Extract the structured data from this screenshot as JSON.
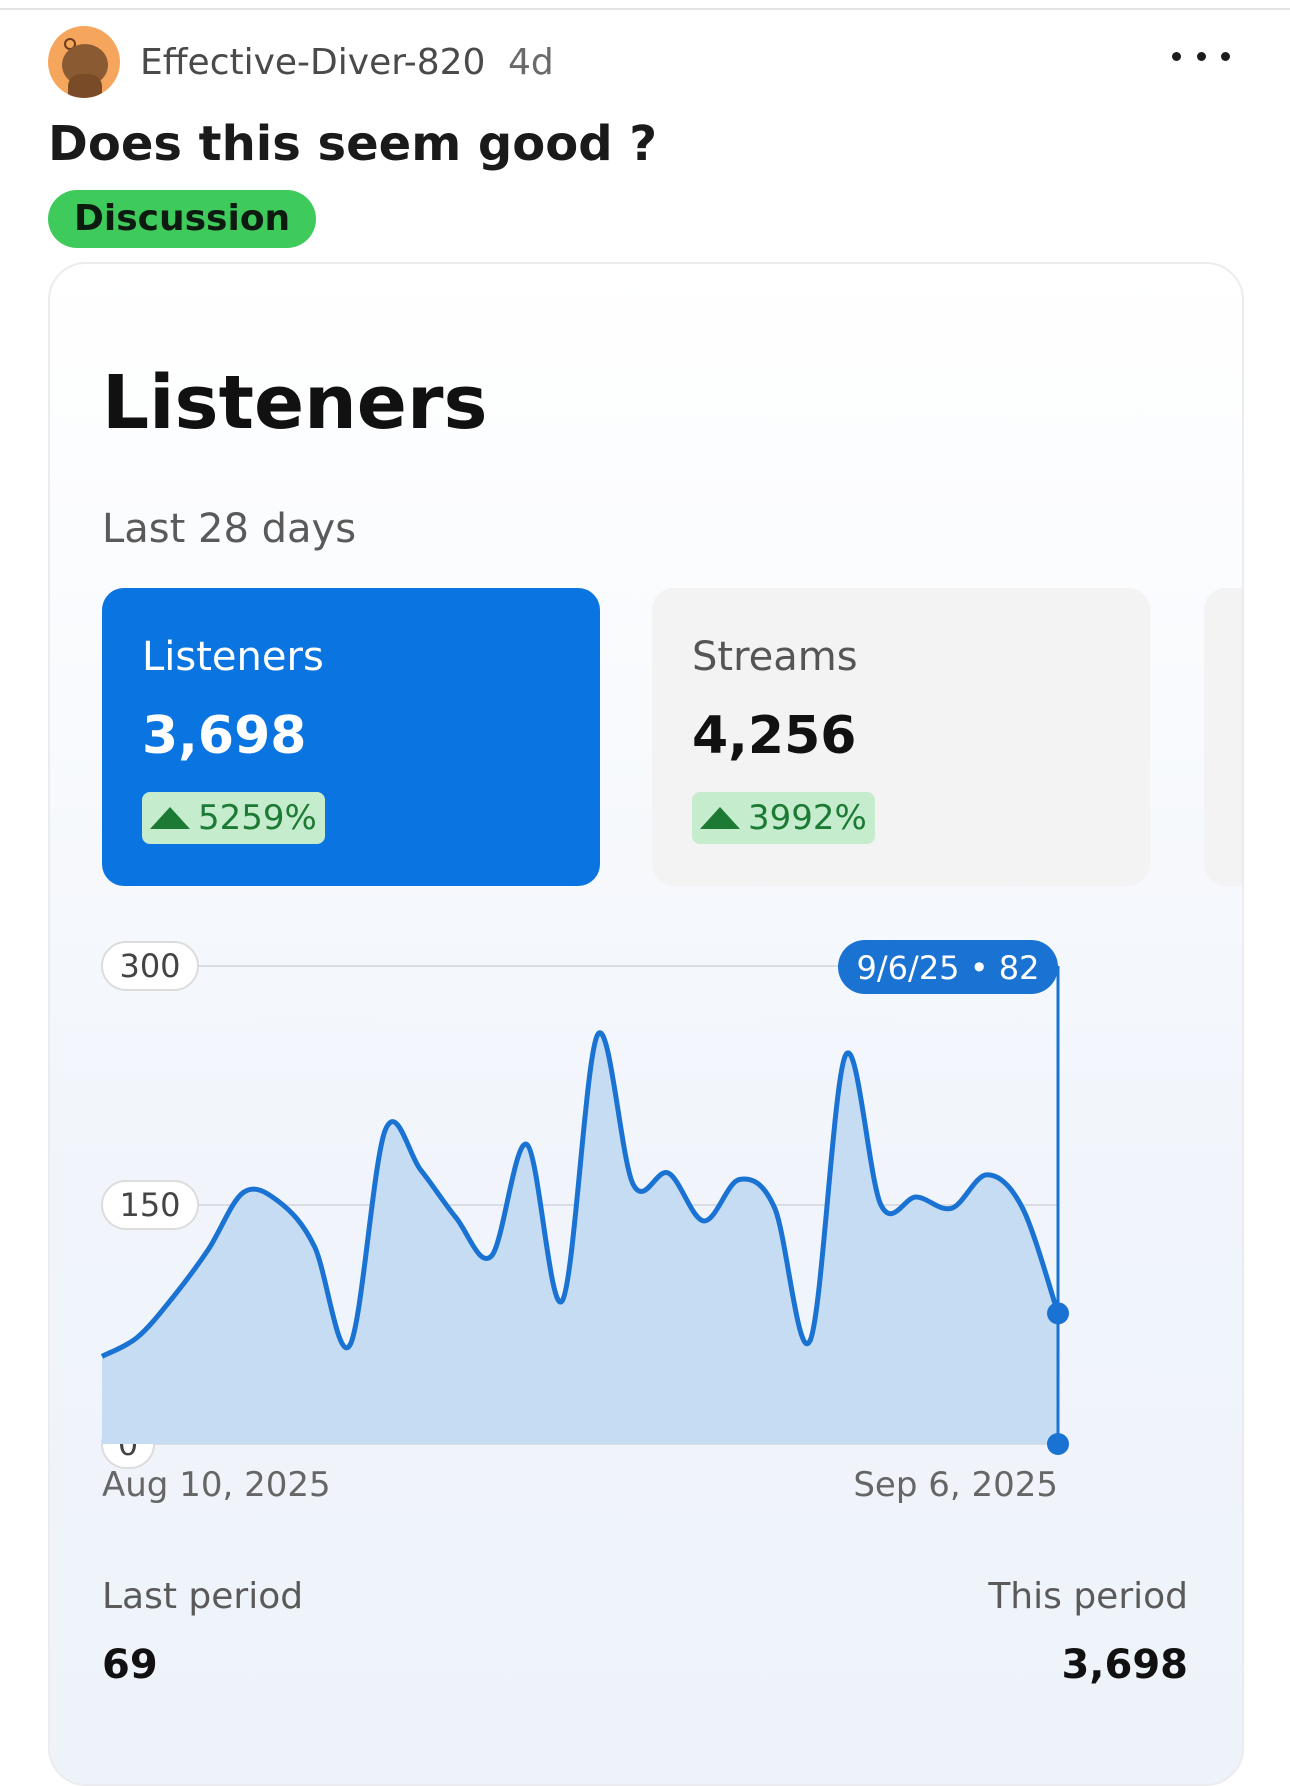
{
  "post": {
    "author": "Effective-Diver-820",
    "age": "4d",
    "title": "Does this seem good ?",
    "flair": "Discussion",
    "icons": {
      "more": "more-horizontal-icon",
      "avatar": "snoo-avatar-icon"
    }
  },
  "card": {
    "title": "Listeners",
    "period": "Last 28 days",
    "stats": [
      {
        "label": "Listeners",
        "value": "3,698",
        "change": "5259%",
        "trend": "up",
        "selected": true
      },
      {
        "label": "Streams",
        "value": "4,256",
        "change": "3992%",
        "trend": "up",
        "selected": false
      }
    ],
    "footer": {
      "last_label": "Last period",
      "last_value": "69",
      "this_label": "This period",
      "this_value": "3,698"
    }
  },
  "chart_data": {
    "type": "area",
    "start_label": "Aug 10, 2025",
    "end_label": "Sep 6, 2025",
    "y_ticks": [
      "300",
      "150",
      "0"
    ],
    "ylim": [
      0,
      300
    ],
    "tooltip": "9/6/25 • 82",
    "color": "#1a73d2",
    "series": [
      {
        "values": [
          55,
          67,
          92,
          122,
          158,
          152,
          124,
          62,
          197,
          172,
          142,
          118,
          188,
          90,
          257,
          163,
          170,
          140,
          166,
          148,
          65,
          244,
          150,
          155,
          148,
          169,
          148,
          82
        ]
      }
    ]
  }
}
